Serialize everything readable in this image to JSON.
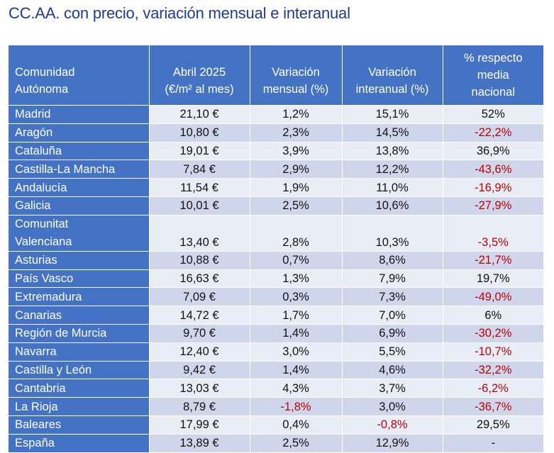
{
  "title": "CC.AA. con precio, variación mensual e interanual",
  "headers": {
    "col1_line1": "Comunidad",
    "col1_line2": "Autónoma",
    "col2_line1": "Abril 2025",
    "col2_line2": "(€/m² al mes)",
    "col3_line1": "Variación",
    "col3_line2": "mensual (%)",
    "col4_line1": "Variación",
    "col4_line2": "interanual (%)",
    "col5_line1": "% respecto",
    "col5_line2": "media",
    "col5_line3": "nacional"
  },
  "rows": [
    {
      "name": "Madrid",
      "price": "21,10 €",
      "monthly": "1,2%",
      "yearly": "15,1%",
      "vs_national": "52%"
    },
    {
      "name": "Aragón",
      "price": "10,80 €",
      "monthly": "2,3%",
      "yearly": "14,5%",
      "vs_national": "-22,2%"
    },
    {
      "name": "Cataluña",
      "price": "19,01 €",
      "monthly": "3,9%",
      "yearly": "13,8%",
      "vs_national": "36,9%"
    },
    {
      "name": "Castilla-La Mancha",
      "price": "7,84 €",
      "monthly": "2,9%",
      "yearly": "12,2%",
      "vs_national": "-43,6%"
    },
    {
      "name": "Andalucía",
      "price": "11,54 €",
      "monthly": "1,9%",
      "yearly": "11,0%",
      "vs_national": "-16,9%"
    },
    {
      "name": "Galicia",
      "price": "10,01 €",
      "monthly": "2,5%",
      "yearly": "10,6%",
      "vs_national": "-27,9%"
    },
    {
      "name_line1": "Comunitat",
      "name_line2": "Valenciana",
      "price": "13,40 €",
      "monthly": "2,8%",
      "yearly": "10,3%",
      "vs_national": "-3,5%"
    },
    {
      "name": "Asturias",
      "price": "10,88 €",
      "monthly": "0,7%",
      "yearly": "8,6%",
      "vs_national": "-21,7%"
    },
    {
      "name": "País Vasco",
      "price": "16,63 €",
      "monthly": "1,3%",
      "yearly": "7,9%",
      "vs_national": "19,7%"
    },
    {
      "name": "Extremadura",
      "price": "7,09 €",
      "monthly": "0,3%",
      "yearly": "7,3%",
      "vs_national": "-49,0%"
    },
    {
      "name": "Canarias",
      "price": "14,72 €",
      "monthly": "1,7%",
      "yearly": "7,0%",
      "vs_national": "6%"
    },
    {
      "name": "Región de Murcia",
      "price": "9,70 €",
      "monthly": "1,4%",
      "yearly": "6,9%",
      "vs_national": "-30,2%"
    },
    {
      "name": "Navarra",
      "price": "12,40 €",
      "monthly": "3,0%",
      "yearly": "5,5%",
      "vs_national": "-10,7%"
    },
    {
      "name": "Castilla y León",
      "price": "9,42 €",
      "monthly": "1,4%",
      "yearly": "4,6%",
      "vs_national": "-32,2%"
    },
    {
      "name": "Cantabria",
      "price": "13,03 €",
      "monthly": "4,3%",
      "yearly": "3,7%",
      "vs_national": "-6,2%"
    },
    {
      "name": "La Rioja",
      "price": "8,79 €",
      "monthly": "-1,8%",
      "yearly": "3,0%",
      "vs_national": "-36,7%"
    },
    {
      "name": "Baleares",
      "price": "17,99 €",
      "monthly": "0,4%",
      "yearly": "-0,8%",
      "vs_national": "29,5%"
    },
    {
      "name": "España",
      "price": "13,89 €",
      "monthly": "2,5%",
      "yearly": "12,9%",
      "vs_national": "-"
    }
  ],
  "colors": {
    "title": "#1f3a93",
    "header_bg": "#4472c4",
    "row_light": "#e9edf7",
    "row_dark": "#cfd6ec",
    "negative": "#c00000"
  }
}
